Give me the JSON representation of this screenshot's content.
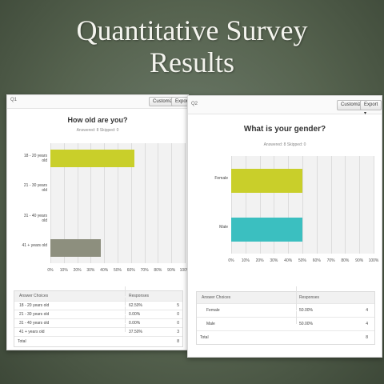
{
  "slide": {
    "title_line1": "Quantitative Survey",
    "title_line2": "Results"
  },
  "q1": {
    "label": "Q1",
    "customize_label": "Customize",
    "export_label": "Export",
    "question": "How old are you?",
    "answered_skipped": "Answered: 8    Skipped: 0",
    "table_headers": [
      "Answer Choices",
      "Responses"
    ],
    "rows": [
      {
        "choice": "18 - 20 years old",
        "percent": "62.50%",
        "count": "5"
      },
      {
        "choice": "21 - 30 years old",
        "percent": "0.00%",
        "count": "0"
      },
      {
        "choice": "31 - 40 years old",
        "percent": "0.00%",
        "count": "0"
      },
      {
        "choice": "41 + years old",
        "percent": "37.50%",
        "count": "3"
      }
    ],
    "total_label": "Total",
    "total_count": "8"
  },
  "q2": {
    "label": "Q2",
    "customize_label": "Customize",
    "export_label": "Export ▾",
    "question": "What is your gender?",
    "answered_skipped": "Answered: 8    Skipped: 0",
    "table_headers": [
      "Answer Choices",
      "Responses"
    ],
    "rows": [
      {
        "choice": "Female",
        "percent": "50.00%",
        "count": "4"
      },
      {
        "choice": "Male",
        "percent": "50.00%",
        "count": "4"
      }
    ],
    "total_label": "Total",
    "total_count": "8"
  },
  "chart_data": [
    {
      "type": "bar",
      "orientation": "horizontal",
      "title": "How old are you?",
      "categories": [
        "18 - 20 years old",
        "21 - 30 years old",
        "31 - 40 years old",
        "41 + years old"
      ],
      "values": [
        62.5,
        0,
        0,
        37.5
      ],
      "colors": [
        "#c9cf2a",
        "#c9cf2a",
        "#c9cf2a",
        "#8d8f7e"
      ],
      "xlim": [
        0,
        100
      ],
      "x_ticks": [
        "0%",
        "10%",
        "20%",
        "30%",
        "40%",
        "50%",
        "60%",
        "70%",
        "80%",
        "90%",
        "100%"
      ],
      "grid": true
    },
    {
      "type": "bar",
      "orientation": "horizontal",
      "title": "What is your gender?",
      "categories": [
        "Female",
        "Male"
      ],
      "values": [
        50,
        50
      ],
      "colors": [
        "#c9cf2a",
        "#3bbfc0"
      ],
      "xlim": [
        0,
        100
      ],
      "x_ticks": [
        "0%",
        "10%",
        "20%",
        "30%",
        "40%",
        "50%",
        "60%",
        "70%",
        "80%",
        "90%",
        "100%"
      ],
      "grid": true
    }
  ]
}
